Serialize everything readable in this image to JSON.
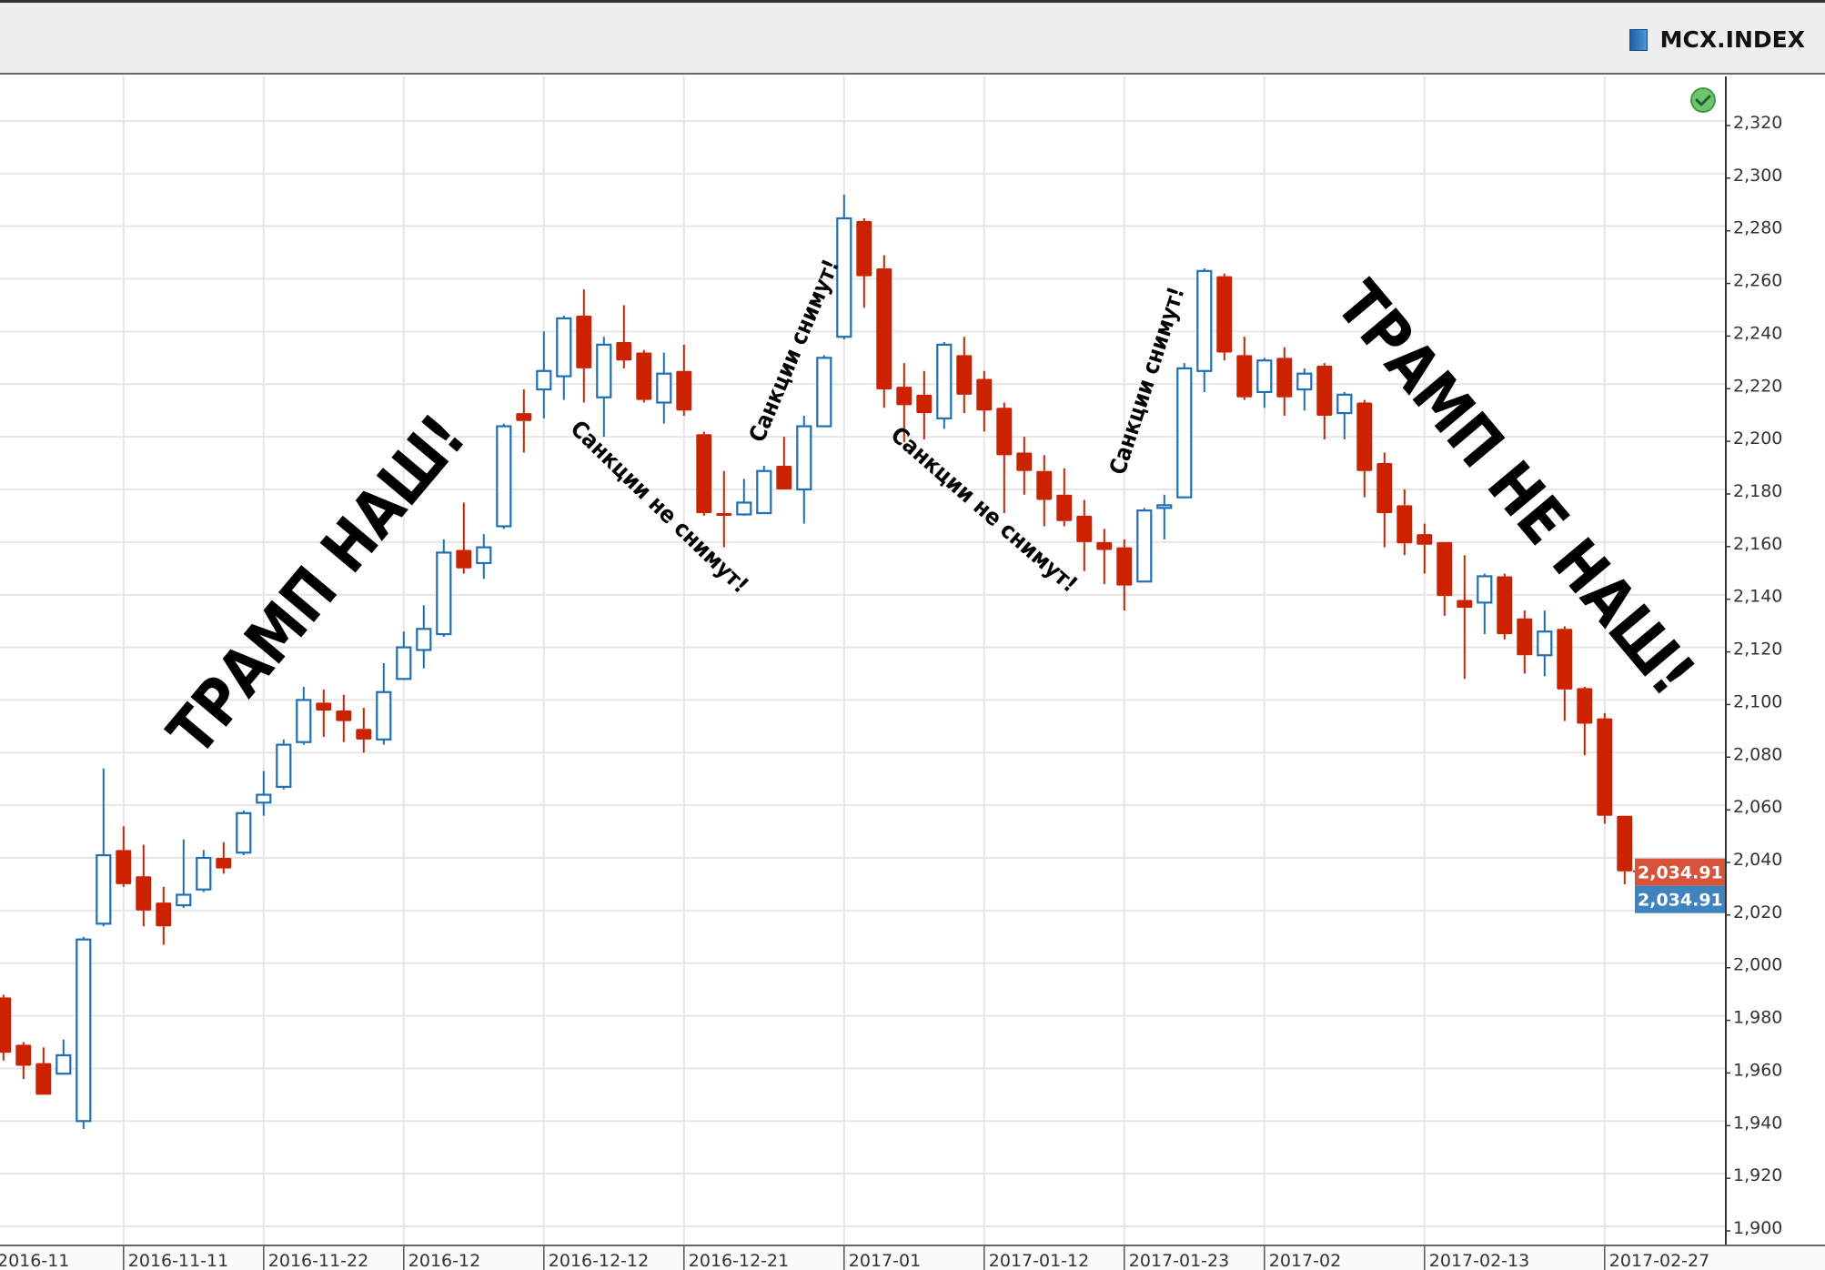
{
  "header": {
    "ticker": "MCX.INDEX",
    "ticker_icon": "blue-square-icon",
    "status_icon": "green-check-icon"
  },
  "colors": {
    "up": "#1f6fb5",
    "down": "#cc2200",
    "grid": "#e6e6e6",
    "last_price_bg": "#d9533a",
    "alt_price_bg": "#3f83bf"
  },
  "chart_data": {
    "type": "candlestick",
    "ylim": [
      1890,
      2335
    ],
    "yticks": [
      "1,900",
      "1,920",
      "1,940",
      "1,960",
      "1,980",
      "2,000",
      "2,020",
      "2,040",
      "2,060",
      "2,080",
      "2,100",
      "2,120",
      "2,140",
      "2,160",
      "2,180",
      "2,200",
      "2,220",
      "2,240",
      "2,260",
      "2,280",
      "2,300",
      "2,320"
    ],
    "ytick_values": [
      1900,
      1920,
      1940,
      1960,
      1980,
      2000,
      2020,
      2040,
      2060,
      2080,
      2100,
      2120,
      2140,
      2160,
      2180,
      2200,
      2220,
      2240,
      2260,
      2280,
      2300,
      2320
    ],
    "xticks": [
      {
        "label": "2016-11",
        "candle": 0
      },
      {
        "label": "2016-11-11",
        "candle": 6
      },
      {
        "label": "2016-11-22",
        "candle": 13
      },
      {
        "label": "2016-12",
        "candle": 20
      },
      {
        "label": "2016-12-12",
        "candle": 27
      },
      {
        "label": "2016-12-21",
        "candle": 34
      },
      {
        "label": "2017-01",
        "candle": 42
      },
      {
        "label": "2017-01-12",
        "candle": 49
      },
      {
        "label": "2017-01-23",
        "candle": 56
      },
      {
        "label": "2017-02",
        "candle": 63
      },
      {
        "label": "2017-02-13",
        "candle": 71
      },
      {
        "label": "2017-02-27",
        "candle": 80
      }
    ],
    "candle_fields": [
      "open",
      "high",
      "low",
      "close"
    ],
    "candles": [
      [
        1987,
        1988,
        1963,
        1966
      ],
      [
        1969,
        1970,
        1956,
        1961
      ],
      [
        1962,
        1968,
        1950,
        1950
      ],
      [
        1958,
        1971,
        1958,
        1965
      ],
      [
        1940,
        2010,
        1937,
        2009
      ],
      [
        2015,
        2074,
        2014,
        2041
      ],
      [
        2043,
        2052,
        2029,
        2030
      ],
      [
        2033,
        2045,
        2014,
        2020
      ],
      [
        2023,
        2029,
        2007,
        2014
      ],
      [
        2022,
        2047,
        2021,
        2026
      ],
      [
        2028,
        2043,
        2027,
        2040
      ],
      [
        2040,
        2046,
        2034,
        2036
      ],
      [
        2042,
        2058,
        2041,
        2057
      ],
      [
        2061,
        2073,
        2056,
        2064
      ],
      [
        2067,
        2085,
        2066,
        2083
      ],
      [
        2084,
        2105,
        2083,
        2100
      ],
      [
        2099,
        2104,
        2086,
        2096
      ],
      [
        2096,
        2102,
        2084,
        2092
      ],
      [
        2089,
        2097,
        2080,
        2085
      ],
      [
        2085,
        2114,
        2083,
        2103
      ],
      [
        2108,
        2126,
        2108,
        2120
      ],
      [
        2119,
        2136,
        2112,
        2127
      ],
      [
        2125,
        2161,
        2124,
        2156
      ],
      [
        2157,
        2175,
        2148,
        2150
      ],
      [
        2152,
        2163,
        2146,
        2158
      ],
      [
        2166,
        2205,
        2165,
        2204
      ],
      [
        2209,
        2218,
        2194,
        2206
      ],
      [
        2218,
        2240,
        2207,
        2225
      ],
      [
        2223,
        2246,
        2214,
        2245
      ],
      [
        2246,
        2256,
        2213,
        2226
      ],
      [
        2215,
        2238,
        2200,
        2235
      ],
      [
        2236,
        2250,
        2226,
        2229
      ],
      [
        2232,
        2233,
        2213,
        2214
      ],
      [
        2213,
        2232,
        2205,
        2224
      ],
      [
        2225,
        2235,
        2208,
        2210
      ],
      [
        2201,
        2202,
        2170,
        2171
      ],
      [
        2171,
        2187,
        2158,
        2170.5
      ],
      [
        2170.5,
        2184,
        2170,
        2175
      ],
      [
        2171,
        2189,
        2171,
        2187
      ],
      [
        2189,
        2200,
        2180,
        2180
      ],
      [
        2180,
        2208,
        2167,
        2204
      ],
      [
        2204,
        2231,
        2204,
        2230
      ],
      [
        2238,
        2292,
        2237,
        2283
      ],
      [
        2282,
        2283,
        2249,
        2261
      ],
      [
        2264,
        2269,
        2211,
        2218
      ],
      [
        2219,
        2228,
        2198,
        2212
      ],
      [
        2216,
        2225,
        2199,
        2209
      ],
      [
        2207,
        2236,
        2203,
        2235
      ],
      [
        2231,
        2238,
        2209,
        2216
      ],
      [
        2222,
        2225,
        2202,
        2210
      ],
      [
        2211,
        2213,
        2171,
        2193
      ],
      [
        2194,
        2200,
        2178,
        2187
      ],
      [
        2187,
        2193,
        2166,
        2176
      ],
      [
        2178,
        2188,
        2166,
        2168
      ],
      [
        2170,
        2176,
        2149,
        2160
      ],
      [
        2160,
        2165,
        2144,
        2157
      ],
      [
        2158,
        2161,
        2134,
        2143.5
      ],
      [
        2145,
        2173,
        2145,
        2172
      ],
      [
        2173,
        2178,
        2161,
        2174
      ],
      [
        2177,
        2228,
        2177,
        2226
      ],
      [
        2225,
        2264,
        2217,
        2263
      ],
      [
        2261,
        2262,
        2229,
        2232
      ],
      [
        2231,
        2238,
        2214,
        2215
      ],
      [
        2217,
        2230,
        2211,
        2229
      ],
      [
        2230,
        2234,
        2208,
        2215
      ],
      [
        2218,
        2226,
        2210,
        2224
      ],
      [
        2227,
        2228,
        2199,
        2208
      ],
      [
        2209,
        2217,
        2199,
        2216
      ],
      [
        2213,
        2214,
        2177,
        2187
      ],
      [
        2190,
        2194,
        2158,
        2171
      ],
      [
        2174,
        2180,
        2155,
        2159.5
      ],
      [
        2163,
        2167,
        2148,
        2159
      ],
      [
        2160,
        2160,
        2132,
        2139.5
      ],
      [
        2138,
        2155,
        2108,
        2135
      ],
      [
        2137,
        2148,
        2125,
        2147
      ],
      [
        2147,
        2148,
        2123,
        2125
      ],
      [
        2131,
        2134,
        2110,
        2117
      ],
      [
        2117,
        2134,
        2109,
        2126
      ],
      [
        2127,
        2128,
        2092,
        2104
      ],
      [
        2104.5,
        2105,
        2079,
        2091
      ],
      [
        2093,
        2095,
        2053,
        2056
      ],
      [
        2056,
        2056,
        2030,
        2034.91
      ]
    ],
    "last_price": 2034.91,
    "last_price_label": "2,034.91",
    "alt_price_label": "2,034.91",
    "grid": true,
    "annotations": {
      "trump_ours": "ТРАМП НАШ!",
      "trump_not_ours": "ТРАМП НЕ НАШ!",
      "sanctions_not_lifted_1": "Санкции не снимут!",
      "sanctions_lifted_1": "Санкции снимут!",
      "sanctions_not_lifted_2": "Санкции не снимут!",
      "sanctions_lifted_2": "Санкции снимут!"
    }
  }
}
